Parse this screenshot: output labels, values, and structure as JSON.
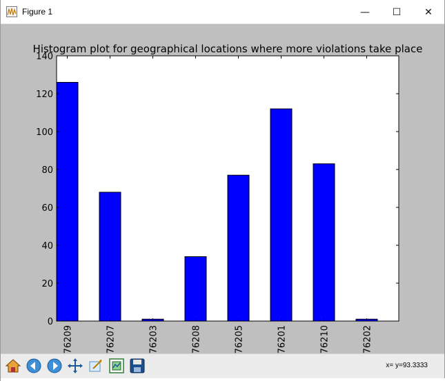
{
  "window": {
    "title": "Figure 1"
  },
  "window_controls": {
    "minimize": "—",
    "maximize": "☐",
    "close": "✕"
  },
  "toolbar": {
    "buttons": [
      "home-icon",
      "back-arrow-icon",
      "forward-arrow-icon",
      "pan-icon",
      "zoom-icon",
      "subplots-icon",
      "save-icon"
    ],
    "status": "x= y=93.3333"
  },
  "colors": {
    "bar_fill": "#0000ff",
    "bar_edge": "#000000",
    "figure_bg": "#bfbfbf",
    "axes_bg": "#ffffff"
  },
  "chart_data": {
    "type": "bar",
    "title": "Histogram plot for geographical locations where more violations take place",
    "xlabel": "",
    "ylabel": "",
    "categories": [
      "76209",
      "76207",
      "76203",
      "76208",
      "76205",
      "76201",
      "76210",
      "76202"
    ],
    "values": [
      126,
      68,
      1,
      34,
      77,
      112,
      83,
      1
    ],
    "ylim": [
      0,
      140
    ],
    "yticks": [
      0,
      20,
      40,
      60,
      80,
      100,
      120,
      140
    ],
    "grid": false,
    "legend": "none"
  }
}
